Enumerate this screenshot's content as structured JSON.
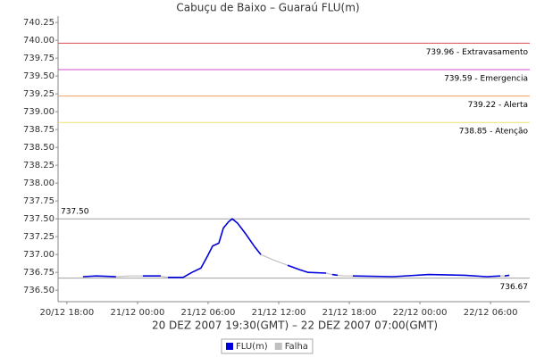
{
  "chart_data": {
    "type": "line",
    "title": "Cabuçu de Baixo – Guaraú FLU(m)",
    "x_label": "20 DEZ 2007 19:30(GMT) – 22 DEZ 2007 07:00(GMT)",
    "x": [
      19.37,
      20.5,
      22.18,
      23.3,
      24.45,
      25.97,
      26.27,
      26.58,
      27.87,
      28.63,
      29.39,
      29.92,
      30.38,
      30.91,
      31.29,
      31.74,
      32.05,
      32.5,
      33.19,
      33.95,
      34.48,
      35.6,
      36.76,
      37.74,
      38.5,
      40.02,
      40.3,
      40.55,
      41.0,
      41.6,
      42.3,
      45.72,
      48.75,
      51.79,
      53.69,
      54.83,
      55.0,
      55.2,
      55.6
    ],
    "series": [
      {
        "name": "Falha",
        "color": "#c0c0c0",
        "values": [
          null,
          null,
          736.69,
          736.7,
          736.7,
          736.7,
          736.69,
          736.68,
          null,
          null,
          null,
          null,
          null,
          null,
          null,
          null,
          null,
          null,
          null,
          null,
          737.0,
          736.92,
          736.85,
          null,
          null,
          736.74,
          736.73,
          736.72,
          736.71,
          736.7,
          736.7,
          null,
          null,
          null,
          null,
          736.7,
          736.7,
          736.7,
          null
        ]
      },
      {
        "name": "FLU(m)",
        "color": "#0000dd",
        "values": [
          736.69,
          736.7,
          736.69,
          null,
          736.7,
          736.7,
          null,
          736.68,
          736.68,
          736.75,
          736.81,
          736.97,
          737.12,
          737.16,
          737.37,
          737.46,
          737.5,
          737.44,
          737.29,
          737.11,
          737.0,
          null,
          736.85,
          736.79,
          736.75,
          736.74,
          null,
          736.72,
          736.71,
          null,
          736.7,
          736.69,
          736.72,
          736.71,
          736.69,
          736.7,
          null,
          736.7,
          736.71
        ]
      }
    ],
    "thresholds": [
      {
        "value": 739.96,
        "label": "739.96 - Extravasamento",
        "color": "#e04848"
      },
      {
        "value": 739.59,
        "label": "739.59 - Emergencia",
        "color": "#d050d0"
      },
      {
        "value": 739.22,
        "label": "739.22 - Alerta",
        "color": "#f0a060"
      },
      {
        "value": 738.85,
        "label": "738.85 - Atenção",
        "color": "#f0e070"
      },
      {
        "value": 737.5,
        "label": "737.50",
        "color": "#a0a0a0"
      },
      {
        "value": 736.67,
        "label": "736.67",
        "color": "#a0a0a0"
      }
    ],
    "xlim": [
      17.25,
      57.33
    ],
    "ylim": [
      736.34,
      740.34
    ],
    "xticks": [
      {
        "value": 18,
        "label": "20/12 18:00"
      },
      {
        "value": 24,
        "label": "21/12 00:00"
      },
      {
        "value": 30,
        "label": "21/12 06:00"
      },
      {
        "value": 36,
        "label": "21/12 12:00"
      },
      {
        "value": 42,
        "label": "21/12 18:00"
      },
      {
        "value": 48,
        "label": "22/12 00:00"
      },
      {
        "value": 54,
        "label": "22/12 06:00"
      }
    ],
    "yticks": [
      {
        "value": 736.5,
        "label": "736.50"
      },
      736.75,
      {
        "value": 737.0,
        "label": "737.00"
      },
      737.25,
      {
        "value": 737.5,
        "label": "737.50"
      },
      737.75,
      {
        "value": 738.0,
        "label": "738.00"
      },
      738.25,
      {
        "value": 738.5,
        "label": "738.50"
      },
      738.75,
      {
        "value": 739.0,
        "label": "739.00"
      },
      739.25,
      {
        "value": 739.5,
        "label": "739.50"
      },
      739.75,
      {
        "value": 740.0,
        "label": "740.00"
      },
      740.25
    ],
    "legend": "bottom"
  }
}
